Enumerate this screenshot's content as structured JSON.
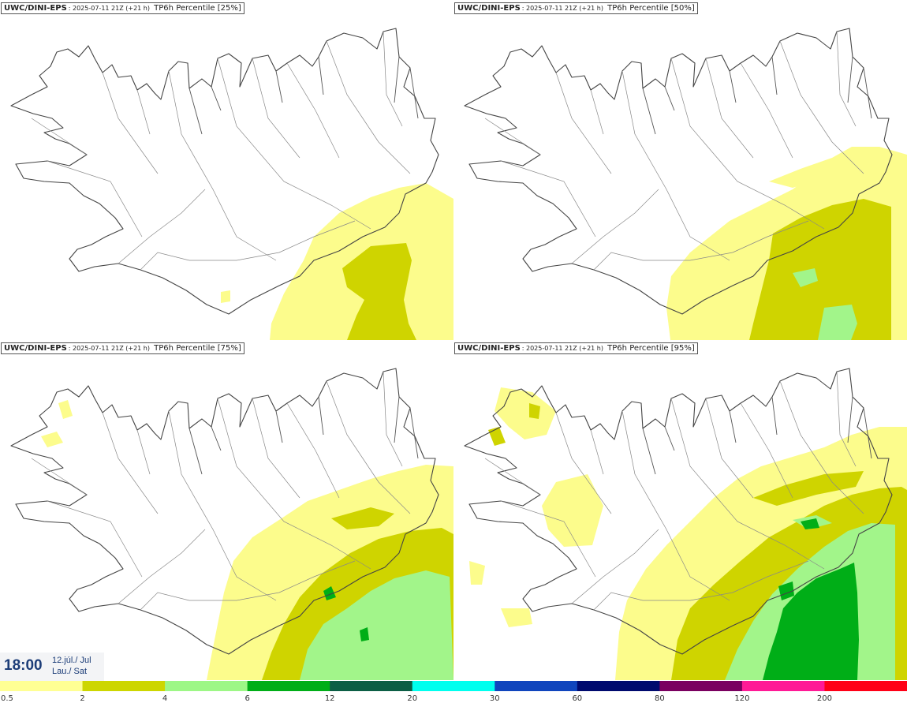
{
  "panels": [
    {
      "model": "UWC/DINI-EPS",
      "run": ": 2025-07-11 21Z (+21 h)",
      "param": "TP6h Percentile [25%]"
    },
    {
      "model": "UWC/DINI-EPS",
      "run": ": 2025-07-11 21Z (+21 h)",
      "param": "TP6h Percentile [50%]"
    },
    {
      "model": "UWC/DINI-EPS",
      "run": ": 2025-07-11 21Z (+21 h)",
      "param": "TP6h Percentile [75%]"
    },
    {
      "model": "UWC/DINI-EPS",
      "run": ": 2025-07-11 21Z (+21 h)",
      "param": "TP6h Percentile [95%]"
    }
  ],
  "valid_time": {
    "time": "18:00",
    "date_line1": "12.júl./ Jul",
    "date_line2": "Lau./ Sat"
  },
  "legend": {
    "labels": [
      "0.5",
      "2",
      "4",
      "6",
      "12",
      "20",
      "30",
      "60",
      "80",
      "120",
      "200"
    ],
    "colors": [
      "#ffff94",
      "#cdd600",
      "#9df786",
      "#00ae17",
      "#0c5e45",
      "#00ffee",
      "#1045bd",
      "#000a6e",
      "#7a0060",
      "#ff1a96",
      "#ff0017"
    ]
  },
  "colors": {
    "shade_05": "#fcfc8c",
    "shade_2": "#cfd400",
    "shade_4": "#a2f58a",
    "shade_6": "#00ae17",
    "shade_12": "#0c5e45",
    "shade_20": "#00ffee",
    "shade_30": "#1045bd",
    "shade_60": "#000a6e",
    "shade_80": "#7a0060",
    "shade_120": "#ff1a96",
    "shade_200": "#ff0017",
    "coast": "#444444",
    "roads": "#888888",
    "time_text": "#1c3d78",
    "time_bg": "#f3f4f6"
  }
}
